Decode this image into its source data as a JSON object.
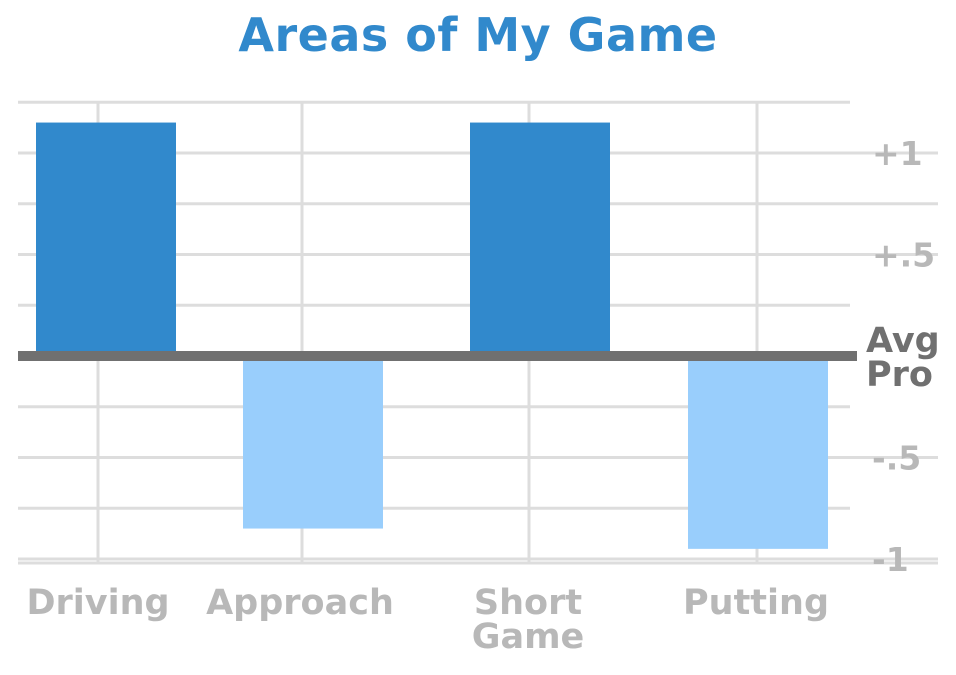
{
  "chart_data": {
    "type": "bar",
    "title": "Areas of My Game",
    "categories": [
      [
        "Driving"
      ],
      [
        "Approach"
      ],
      [
        "Short",
        "Game"
      ],
      [
        "Putting"
      ]
    ],
    "values": [
      1.15,
      -0.85,
      1.15,
      -0.95
    ],
    "series_colors": [
      "#3189CC",
      "#99CEFC",
      "#3189CC",
      "#99CEFC"
    ],
    "positive_color": "#3189CC",
    "negative_color": "#99CEFC",
    "reference_line": {
      "value": 0,
      "label": [
        "Avg",
        "Pro"
      ],
      "color": "#707070"
    },
    "y_ticks": [
      {
        "value": 1,
        "label": "+1"
      },
      {
        "value": 0.5,
        "label": "+.5"
      },
      {
        "value": -0.5,
        "label": "-.5"
      },
      {
        "value": -1,
        "label": "-1"
      }
    ],
    "ylim": [
      -1.02,
      1.25
    ],
    "grid": true,
    "grid_color": "#DDDDDD"
  }
}
